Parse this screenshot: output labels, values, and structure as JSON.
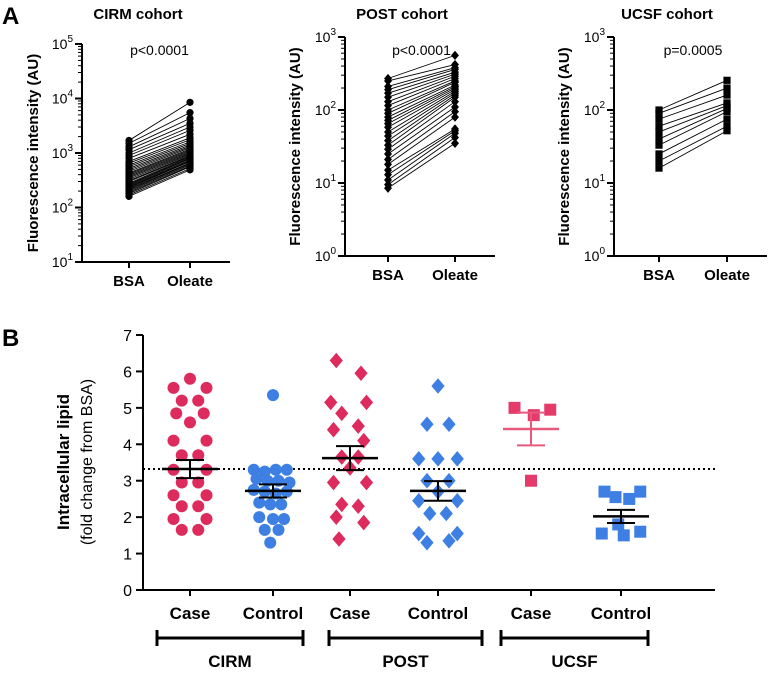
{
  "panel_a_label": "A",
  "panel_b_label": "B",
  "colors": {
    "case": "#dc2b5c",
    "control": "#3d7fe3",
    "ucsf_case": "#e53b6b",
    "ucsf_mean": "#e75a7d",
    "axis": "#000000"
  },
  "chart_data": [
    {
      "type": "paired-scatter-log",
      "title": "CIRM cohort",
      "ylabel": "Fluorescence intensity (AU)",
      "categories": [
        "BSA",
        "Oleate"
      ],
      "pvalue": "p<0.0001",
      "yscale": "log10",
      "ylim": [
        10,
        100000
      ],
      "tick_bases": [
        "10",
        "10",
        "10",
        "10",
        "10"
      ],
      "tick_exps": [
        "1",
        "2",
        "3",
        "4",
        "5"
      ],
      "marker": "circle",
      "pairs": [
        [
          160,
          490
        ],
        [
          170,
          520
        ],
        [
          180,
          560
        ],
        [
          190,
          580
        ],
        [
          200,
          610
        ],
        [
          210,
          640
        ],
        [
          220,
          660
        ],
        [
          230,
          700
        ],
        [
          240,
          720
        ],
        [
          250,
          750
        ],
        [
          260,
          790
        ],
        [
          270,
          810
        ],
        [
          280,
          840
        ],
        [
          300,
          870
        ],
        [
          310,
          900
        ],
        [
          330,
          940
        ],
        [
          350,
          980
        ],
        [
          370,
          1030
        ],
        [
          390,
          1080
        ],
        [
          410,
          1130
        ],
        [
          430,
          1180
        ],
        [
          460,
          1250
        ],
        [
          490,
          1320
        ],
        [
          520,
          1400
        ],
        [
          560,
          1500
        ],
        [
          600,
          1600
        ],
        [
          650,
          1750
        ],
        [
          700,
          1900
        ],
        [
          800,
          2200
        ],
        [
          900,
          2600
        ],
        [
          1000,
          3000
        ],
        [
          1150,
          3500
        ],
        [
          1300,
          4300
        ],
        [
          1500,
          5500
        ],
        [
          1700,
          8500
        ]
      ]
    },
    {
      "type": "paired-scatter-log",
      "title": "POST cohort",
      "ylabel": "Fluorescence intensity (AU)",
      "categories": [
        "BSA",
        "Oleate"
      ],
      "pvalue": "p<0.0001",
      "yscale": "log10",
      "ylim": [
        1,
        1000
      ],
      "tick_bases": [
        "10",
        "10",
        "10",
        "10"
      ],
      "tick_exps": [
        "0",
        "1",
        "2",
        "3"
      ],
      "marker": "diamond",
      "pairs": [
        [
          8.5,
          35
        ],
        [
          9.5,
          42
        ],
        [
          11,
          48
        ],
        [
          13,
          52
        ],
        [
          15,
          55
        ],
        [
          18,
          80
        ],
        [
          21,
          95
        ],
        [
          25,
          110
        ],
        [
          29,
          130
        ],
        [
          33,
          150
        ],
        [
          38,
          160
        ],
        [
          44,
          170
        ],
        [
          50,
          180
        ],
        [
          58,
          190
        ],
        [
          65,
          200
        ],
        [
          72,
          210
        ],
        [
          80,
          220
        ],
        [
          90,
          240
        ],
        [
          100,
          250
        ],
        [
          115,
          270
        ],
        [
          130,
          290
        ],
        [
          150,
          310
        ],
        [
          170,
          330
        ],
        [
          190,
          360
        ],
        [
          210,
          380
        ],
        [
          250,
          420
        ],
        [
          270,
          560
        ]
      ]
    },
    {
      "type": "paired-scatter-log",
      "title": "UCSF cohort",
      "ylabel": "Fluorescence intensity (AU)",
      "categories": [
        "BSA",
        "Oleate"
      ],
      "pvalue": "p=0.0005",
      "yscale": "log10",
      "ylim": [
        1,
        1000
      ],
      "tick_bases": [
        "10",
        "10",
        "10",
        "10"
      ],
      "tick_exps": [
        "0",
        "1",
        "2",
        "3"
      ],
      "marker": "square",
      "pairs": [
        [
          16,
          52
        ],
        [
          20,
          60
        ],
        [
          25,
          75
        ],
        [
          33,
          95
        ],
        [
          40,
          105
        ],
        [
          50,
          115
        ],
        [
          60,
          125
        ],
        [
          75,
          160
        ],
        [
          90,
          200
        ],
        [
          100,
          255
        ]
      ]
    },
    {
      "type": "dot-plot",
      "ylabel": "Intracellular lipid",
      "ylabel2": "(fold change from BSA)",
      "ylim": [
        0,
        7
      ],
      "yticks": [
        "0",
        "1",
        "2",
        "3",
        "4",
        "5",
        "6",
        "7"
      ],
      "reference_line": 3.32,
      "categories": [
        "Case",
        "Control",
        "Case",
        "Control",
        "Case",
        "Control"
      ],
      "brackets": [
        "CIRM",
        "POST",
        "UCSF"
      ],
      "groups": [
        {
          "cohort": "CIRM",
          "label": "Case",
          "color": "case",
          "marker": "circle",
          "mean": 3.32,
          "sem": 0.25,
          "points": [
            [
              0,
              5.8
            ],
            [
              -0.3,
              5.55
            ],
            [
              0.3,
              5.55
            ],
            [
              -0.15,
              5.2
            ],
            [
              0.15,
              5.2
            ],
            [
              -0.25,
              4.85
            ],
            [
              0.25,
              4.85
            ],
            [
              0,
              4.6
            ],
            [
              -0.3,
              4.1
            ],
            [
              0.3,
              4.1
            ],
            [
              -0.15,
              3.7
            ],
            [
              0.15,
              3.7
            ],
            [
              -0.3,
              3.3
            ],
            [
              0.3,
              3.3
            ],
            [
              -0.15,
              2.95
            ],
            [
              0.15,
              2.95
            ],
            [
              -0.3,
              2.6
            ],
            [
              0.3,
              2.6
            ],
            [
              -0.15,
              2.3
            ],
            [
              0.15,
              2.3
            ],
            [
              -0.3,
              1.95
            ],
            [
              0.3,
              1.95
            ],
            [
              -0.15,
              1.65
            ],
            [
              0.15,
              1.65
            ]
          ]
        },
        {
          "cohort": "CIRM",
          "label": "Control",
          "color": "control",
          "marker": "circle",
          "mean": 2.72,
          "sem": 0.18,
          "points": [
            [
              0,
              5.35
            ],
            [
              -0.35,
              3.3
            ],
            [
              -0.15,
              3.25
            ],
            [
              0.05,
              3.3
            ],
            [
              0.25,
              3.3
            ],
            [
              -0.3,
              3.05
            ],
            [
              -0.1,
              3.0
            ],
            [
              0.1,
              3.0
            ],
            [
              0.3,
              2.95
            ],
            [
              -0.35,
              2.75
            ],
            [
              -0.15,
              2.7
            ],
            [
              0.05,
              2.65
            ],
            [
              0.25,
              2.7
            ],
            [
              -0.25,
              2.4
            ],
            [
              -0.05,
              2.35
            ],
            [
              0.15,
              2.35
            ],
            [
              -0.25,
              2.0
            ],
            [
              0,
              1.95
            ],
            [
              0.2,
              1.95
            ],
            [
              -0.15,
              1.65
            ],
            [
              0.1,
              1.65
            ],
            [
              -0.05,
              1.3
            ]
          ]
        },
        {
          "cohort": "POST",
          "label": "Case",
          "color": "case",
          "marker": "diamond",
          "mean": 3.62,
          "sem": 0.33,
          "points": [
            [
              -0.25,
              6.3
            ],
            [
              0.2,
              5.95
            ],
            [
              -0.35,
              5.15
            ],
            [
              0.3,
              5.15
            ],
            [
              -0.15,
              4.85
            ],
            [
              0.15,
              4.5
            ],
            [
              -0.3,
              4.4
            ],
            [
              0.25,
              4.1
            ],
            [
              -0.15,
              3.65
            ],
            [
              0.15,
              3.65
            ],
            [
              0,
              3.35
            ],
            [
              -0.3,
              2.95
            ],
            [
              0.3,
              2.95
            ],
            [
              -0.15,
              2.35
            ],
            [
              0.15,
              2.3
            ],
            [
              -0.25,
              2.0
            ],
            [
              0.25,
              1.85
            ],
            [
              -0.2,
              1.4
            ]
          ]
        },
        {
          "cohort": "POST",
          "label": "Control",
          "color": "control",
          "marker": "diamond",
          "mean": 2.72,
          "sem": 0.27,
          "points": [
            [
              0,
              5.6
            ],
            [
              -0.2,
              4.55
            ],
            [
              0.2,
              4.55
            ],
            [
              -0.35,
              3.6
            ],
            [
              0.35,
              3.6
            ],
            [
              0,
              3.6
            ],
            [
              -0.2,
              3.0
            ],
            [
              0.2,
              3.0
            ],
            [
              0,
              2.7
            ],
            [
              -0.35,
              2.45
            ],
            [
              0.35,
              2.45
            ],
            [
              -0.15,
              2.1
            ],
            [
              0.15,
              2.1
            ],
            [
              -0.35,
              1.55
            ],
            [
              0.35,
              1.55
            ],
            [
              -0.2,
              1.3
            ],
            [
              0.2,
              1.35
            ]
          ]
        },
        {
          "cohort": "UCSF",
          "label": "Case",
          "color": "ucsf_case",
          "mean_color": "ucsf_mean",
          "marker": "square",
          "mean": 4.42,
          "sem": 0.45,
          "points": [
            [
              -0.3,
              5.0
            ],
            [
              0.35,
              4.95
            ],
            [
              0.05,
              4.8
            ],
            [
              0,
              3.0
            ]
          ]
        },
        {
          "cohort": "UCSF",
          "label": "Control",
          "color": "control",
          "marker": "square",
          "mean": 2.02,
          "sem": 0.18,
          "points": [
            [
              -0.3,
              2.7
            ],
            [
              0.35,
              2.7
            ],
            [
              -0.1,
              2.55
            ],
            [
              0.15,
              2.5
            ],
            [
              -0.05,
              1.8
            ],
            [
              -0.35,
              1.55
            ],
            [
              0.05,
              1.5
            ],
            [
              0.35,
              1.6
            ]
          ]
        }
      ]
    }
  ]
}
